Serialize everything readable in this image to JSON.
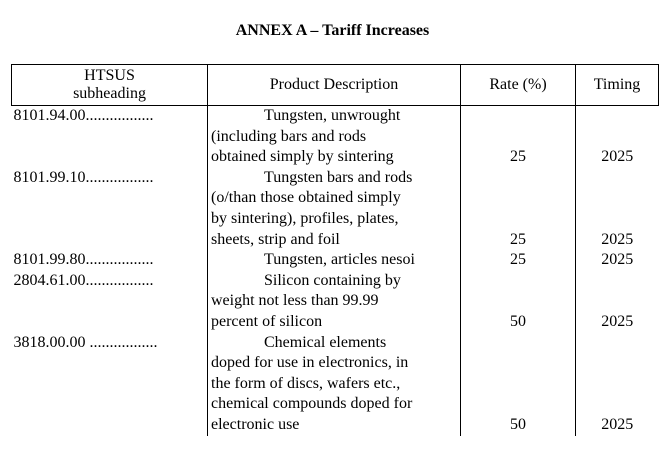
{
  "title": "ANNEX A – Tariff Increases",
  "headers": {
    "htsus_line1": "HTSUS",
    "htsus_line2": "subheading",
    "description": "Product Description",
    "rate": "Rate (%)",
    "timing": "Timing"
  },
  "rows": [
    {
      "code": "8101.94.00.................",
      "desc_lines": [
        "Tungsten, unwrought",
        "(including bars and rods",
        "obtained simply by sintering"
      ],
      "rate": "25",
      "timing": "2025"
    },
    {
      "code": "8101.99.10.................",
      "desc_lines": [
        "Tungsten bars and rods",
        "(o/than those obtained simply",
        "by sintering), profiles, plates,",
        "sheets, strip and foil"
      ],
      "rate": "25",
      "timing": "2025"
    },
    {
      "code": "8101.99.80.................",
      "desc_lines": [
        "Tungsten, articles nesoi"
      ],
      "rate": "25",
      "timing": "2025"
    },
    {
      "code": "2804.61.00.................",
      "desc_lines": [
        "Silicon containing by",
        "weight not less than 99.99",
        "percent of silicon"
      ],
      "rate": "50",
      "timing": "2025"
    },
    {
      "code": "3818.00.00 .................",
      "desc_lines": [
        "Chemical elements",
        "doped for use in electronics, in",
        "the form of discs, wafers etc.,",
        "chemical compounds doped for",
        "electronic use"
      ],
      "rate": "50",
      "timing": "2025"
    }
  ]
}
